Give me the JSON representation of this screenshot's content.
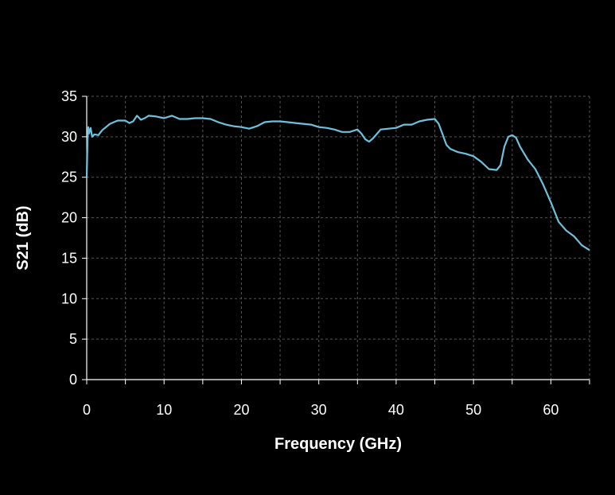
{
  "chart_data": {
    "type": "line",
    "title": "",
    "xlabel": "Frequency (GHz)",
    "ylabel": "S21 (dB)",
    "xlim": [
      0,
      65
    ],
    "ylim": [
      0,
      35
    ],
    "xticks": [
      0,
      10,
      20,
      30,
      40,
      50,
      60
    ],
    "yticks": [
      0,
      5,
      10,
      15,
      20,
      25,
      30,
      35
    ],
    "grid": true,
    "legend": "none",
    "colors": {
      "background": "#000000",
      "line": "#6ec1dc",
      "axis": "#ffffff",
      "grid": "#555555"
    },
    "series": [
      {
        "values": [
          [
            0.0,
            25.0
          ],
          [
            0.1,
            29.5
          ],
          [
            0.2,
            31.2
          ],
          [
            0.3,
            30.4
          ],
          [
            0.5,
            31.1
          ],
          [
            0.7,
            30.0
          ],
          [
            1.0,
            30.3
          ],
          [
            1.5,
            30.2
          ],
          [
            2,
            30.8
          ],
          [
            3,
            31.6
          ],
          [
            4,
            32.0
          ],
          [
            5,
            32.0
          ],
          [
            5.5,
            31.7
          ],
          [
            6,
            31.9
          ],
          [
            6.5,
            32.6
          ],
          [
            7,
            32.1
          ],
          [
            7.5,
            32.3
          ],
          [
            8,
            32.6
          ],
          [
            9,
            32.5
          ],
          [
            10,
            32.3
          ],
          [
            11,
            32.6
          ],
          [
            12,
            32.2
          ],
          [
            13,
            32.2
          ],
          [
            14,
            32.3
          ],
          [
            15,
            32.3
          ],
          [
            16,
            32.2
          ],
          [
            17,
            31.8
          ],
          [
            18,
            31.5
          ],
          [
            19,
            31.3
          ],
          [
            20,
            31.2
          ],
          [
            21,
            31.0
          ],
          [
            22,
            31.3
          ],
          [
            23,
            31.8
          ],
          [
            24,
            31.9
          ],
          [
            25,
            31.9
          ],
          [
            26,
            31.8
          ],
          [
            27,
            31.7
          ],
          [
            28,
            31.6
          ],
          [
            29,
            31.5
          ],
          [
            30,
            31.2
          ],
          [
            31,
            31.1
          ],
          [
            32,
            30.9
          ],
          [
            33,
            30.6
          ],
          [
            34,
            30.6
          ],
          [
            35,
            30.9
          ],
          [
            35.5,
            30.4
          ],
          [
            36,
            29.7
          ],
          [
            36.5,
            29.4
          ],
          [
            37,
            29.8
          ],
          [
            38,
            30.9
          ],
          [
            39,
            31.0
          ],
          [
            40,
            31.1
          ],
          [
            41,
            31.5
          ],
          [
            42,
            31.5
          ],
          [
            43,
            31.9
          ],
          [
            44,
            32.1
          ],
          [
            45,
            32.2
          ],
          [
            45.5,
            31.6
          ],
          [
            46,
            30.3
          ],
          [
            46.5,
            29.0
          ],
          [
            47,
            28.5
          ],
          [
            48,
            28.1
          ],
          [
            49,
            27.9
          ],
          [
            50,
            27.6
          ],
          [
            51,
            26.9
          ],
          [
            52,
            26.0
          ],
          [
            53,
            25.9
          ],
          [
            53.5,
            26.5
          ],
          [
            54,
            28.8
          ],
          [
            54.5,
            30.0
          ],
          [
            55,
            30.2
          ],
          [
            55.5,
            29.9
          ],
          [
            56,
            28.8
          ],
          [
            57,
            27.2
          ],
          [
            58,
            26.0
          ],
          [
            59,
            24.1
          ],
          [
            60,
            21.9
          ],
          [
            61,
            19.5
          ],
          [
            62,
            18.4
          ],
          [
            63,
            17.7
          ],
          [
            64,
            16.6
          ],
          [
            65,
            16.0
          ]
        ]
      }
    ]
  }
}
